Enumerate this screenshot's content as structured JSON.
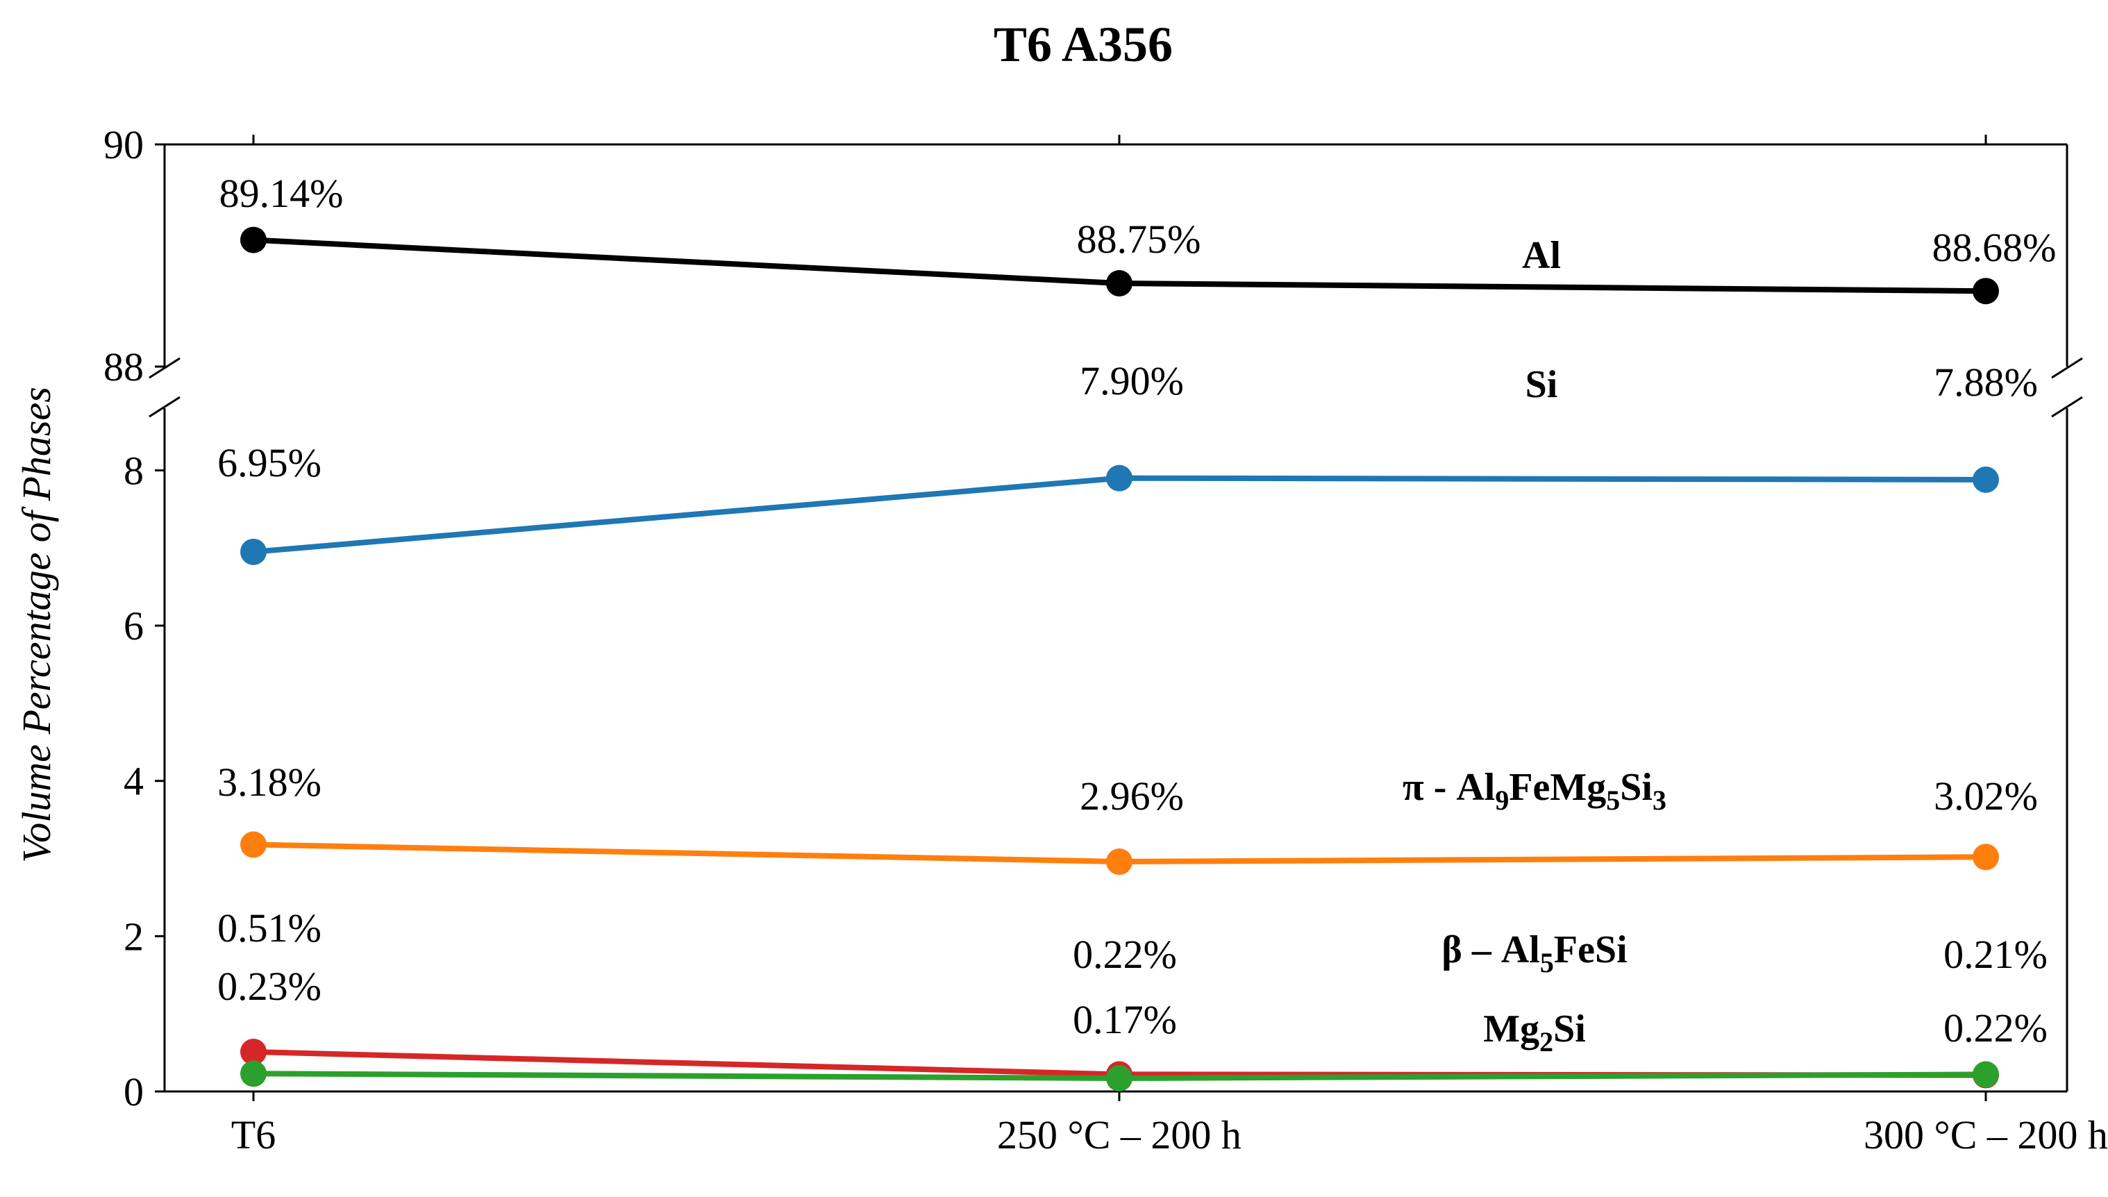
{
  "chart_data": {
    "type": "line",
    "title": "T6 A356",
    "xlabel": "",
    "ylabel": "Volume Percentage of Phases",
    "categories": [
      "T6",
      "250 °C – 200 h",
      "300 °C – 200 h"
    ],
    "y_axis_break": {
      "upper_range": [
        88,
        90
      ],
      "lower_range": [
        0,
        8.8
      ],
      "upper_ticks": [
        "90",
        "88"
      ],
      "lower_ticks": [
        "8",
        "6",
        "4",
        "2",
        "0"
      ]
    },
    "grid": false,
    "series": [
      {
        "name": "Al",
        "label_parts": [
          {
            "t": "Al",
            "sub": false
          }
        ],
        "values": [
          89.14,
          88.75,
          88.68
        ],
        "data_labels": [
          "89.14%",
          "88.75%",
          "88.68%"
        ],
        "color": "#000000"
      },
      {
        "name": "Si",
        "label_parts": [
          {
            "t": "Si",
            "sub": false
          }
        ],
        "values": [
          6.95,
          7.9,
          7.88
        ],
        "data_labels": [
          "6.95%",
          "7.90%",
          "7.88%"
        ],
        "color": "#1f77b4"
      },
      {
        "name": "π - Al9FeMg5Si3",
        "label_parts": [
          {
            "t": "π - Al",
            "sub": false
          },
          {
            "t": "9",
            "sub": true
          },
          {
            "t": "FeMg",
            "sub": false
          },
          {
            "t": "5",
            "sub": true
          },
          {
            "t": "Si",
            "sub": false
          },
          {
            "t": "3",
            "sub": true
          }
        ],
        "values": [
          3.18,
          2.96,
          3.02
        ],
        "data_labels": [
          "3.18%",
          "2.96%",
          "3.02%"
        ],
        "color": "#ff7f0e"
      },
      {
        "name": "β – Al5FeSi",
        "label_parts": [
          {
            "t": "β – Al",
            "sub": false
          },
          {
            "t": "5",
            "sub": true
          },
          {
            "t": "FeSi",
            "sub": false
          }
        ],
        "values": [
          0.51,
          0.22,
          0.21
        ],
        "data_labels": [
          "0.51%",
          "0.22%",
          "0.21%"
        ],
        "color": "#d62728"
      },
      {
        "name": "Mg2Si",
        "label_parts": [
          {
            "t": "Mg",
            "sub": false
          },
          {
            "t": "2",
            "sub": true
          },
          {
            "t": "Si",
            "sub": false
          }
        ],
        "values": [
          0.23,
          0.17,
          0.22
        ],
        "data_labels": [
          "0.23%",
          "0.17%",
          "0.22%"
        ],
        "color": "#2ca02c"
      }
    ]
  }
}
